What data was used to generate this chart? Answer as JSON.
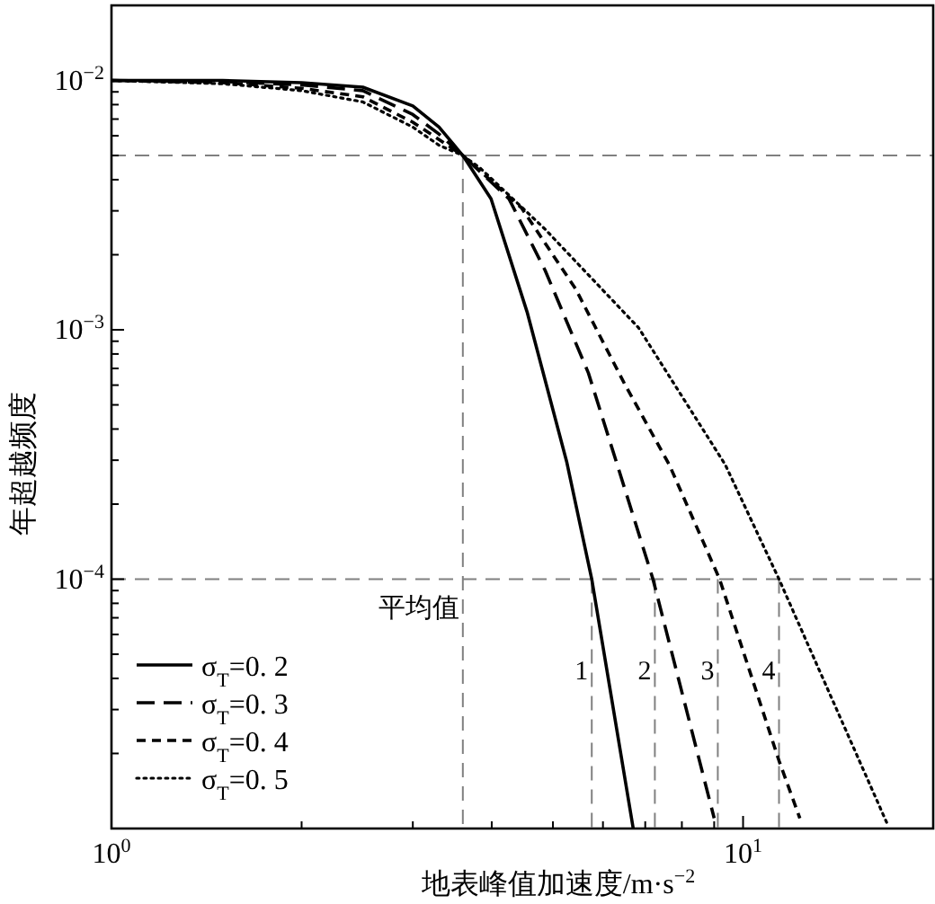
{
  "chart_data": {
    "type": "line",
    "xlabel": "地表峰值加速度/m·s$^{−2}$",
    "ylabel": "年超越频度",
    "log": "xy",
    "xlim": [
      1,
      20
    ],
    "ylim": [
      1e-05,
      0.02
    ],
    "xticks": [
      {
        "value": 1,
        "label": "10$^{0}$"
      },
      {
        "value": 10,
        "label": "10$^{1}$"
      }
    ],
    "yticks": [
      {
        "value": 0.0001,
        "label": "10$^{−4}$"
      },
      {
        "value": 0.001,
        "label": "10$^{−3}$"
      },
      {
        "value": 0.01,
        "label": "10$^{−2}$"
      }
    ],
    "legend": "bottom left",
    "series": [
      {
        "name": "σ$_{T}$=0. 2",
        "color": "#000000",
        "line_style": "solid",
        "x": [
          1,
          1.5,
          2,
          2.5,
          3,
          3.3,
          3.6,
          3.99,
          4.55,
          5.26,
          5.76,
          6.7
        ],
        "values": [
          0.01,
          0.01,
          0.0098,
          0.0094,
          0.0079,
          0.0065,
          0.005,
          0.00335,
          0.00118,
          0.000294,
          0.0001,
          1e-05
        ]
      },
      {
        "name": "σ$_{T}$=0. 3",
        "color": "#000000",
        "line_style": "longdash",
        "x": [
          1,
          1.5,
          2,
          2.5,
          3,
          3.3,
          3.6,
          4.26,
          4.86,
          5.69,
          6.32,
          7.2,
          9.0
        ],
        "values": [
          0.01,
          0.0099,
          0.0096,
          0.0091,
          0.0073,
          0.0061,
          0.005,
          0.00335,
          0.00173,
          0.000671,
          0.000288,
          0.0001,
          1.1e-05
        ]
      },
      {
        "name": "σ$_{T}$=0. 4",
        "color": "#000000",
        "line_style": "dashed",
        "x": [
          1,
          1.5,
          2,
          2.5,
          3,
          3.3,
          3.6,
          4.46,
          5.43,
          6.49,
          7.64,
          9.18,
          11.4,
          12.3
        ],
        "values": [
          0.01,
          0.0098,
          0.0093,
          0.0086,
          0.0068,
          0.0058,
          0.005,
          0.00308,
          0.00146,
          0.000608,
          0.000288,
          0.0001,
          1.87e-05,
          1.1e-05
        ]
      },
      {
        "name": "σ$_{T}$=0. 5",
        "color": "#000000",
        "line_style": "dotted",
        "x": [
          1,
          1.5,
          2,
          2.5,
          3,
          3.3,
          3.6,
          3.84,
          4.86,
          6.83,
          9.37,
          11.4,
          16.9
        ],
        "values": [
          0.01,
          0.0097,
          0.0091,
          0.0082,
          0.0065,
          0.0055,
          0.005,
          0.00444,
          0.00253,
          0.00102,
          0.000288,
          0.0001,
          1.05e-05
        ]
      },
      {
        "color": "#808080",
        "line_style": "refdash",
        "x": [
          1,
          20
        ],
        "values": [
          0.005,
          0.005
        ]
      },
      {
        "color": "#808080",
        "line_style": "refdash",
        "x": [
          3.6,
          3.6
        ],
        "values": [
          0.005,
          1e-05
        ]
      },
      {
        "color": "#808080",
        "line_style": "refdash",
        "x": [
          1,
          20
        ],
        "values": [
          0.0001,
          0.0001
        ]
      },
      {
        "color": "#808080",
        "line_style": "refdash",
        "x": [
          5.76,
          5.76
        ],
        "values": [
          0.0001,
          1e-05
        ]
      },
      {
        "color": "#808080",
        "line_style": "refdash",
        "x": [
          7.25,
          7.25
        ],
        "values": [
          0.0001,
          1e-05
        ]
      },
      {
        "color": "#808080",
        "line_style": "refdash",
        "x": [
          9.12,
          9.12
        ],
        "values": [
          0.0001,
          1e-05
        ]
      },
      {
        "color": "#808080",
        "line_style": "refdash",
        "x": [
          11.4,
          11.4
        ],
        "values": [
          0.0001,
          1e-05
        ]
      }
    ],
    "annotations": [
      {
        "text": "平均值",
        "x": 3.6,
        "y": 7.7e-05
      },
      {
        "text": "1",
        "x": 5.76,
        "y": 4.3e-05
      },
      {
        "text": "2",
        "x": 7.25,
        "y": 4.3e-05
      },
      {
        "text": "3",
        "x": 9.12,
        "y": 4.3e-05
      },
      {
        "text": "4",
        "x": 11.4,
        "y": 4.3e-05
      }
    ]
  }
}
